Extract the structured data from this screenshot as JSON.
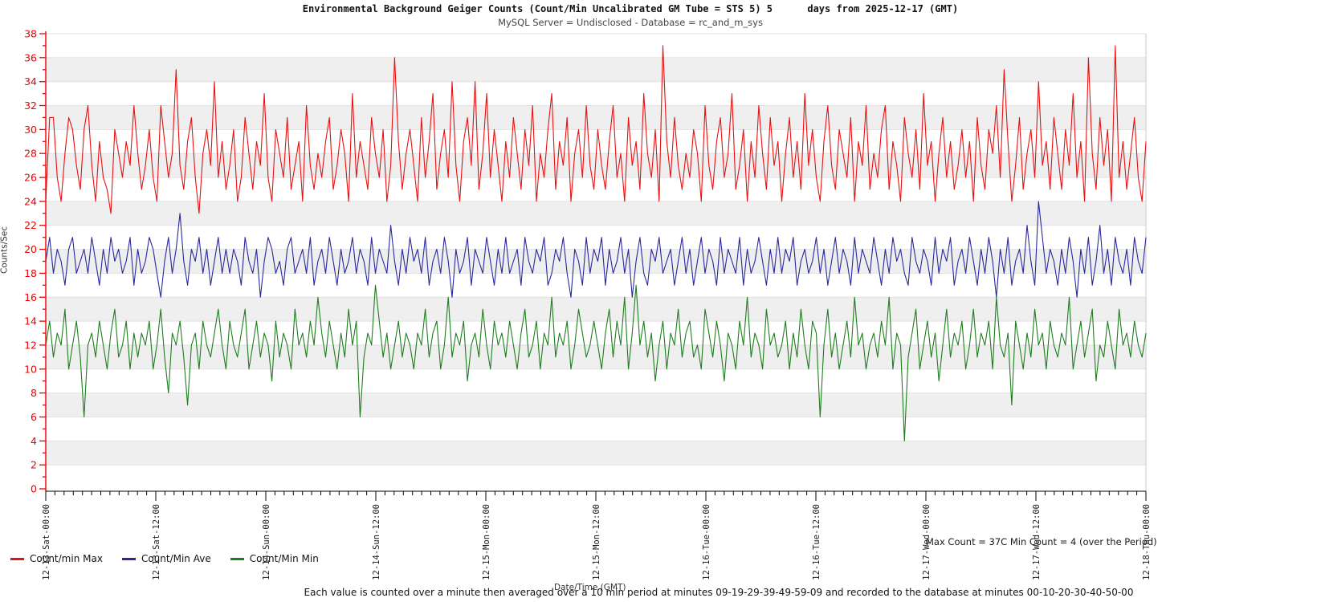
{
  "title": "Environmental Background Geiger Counts (Count/Min Uncalibrated GM Tube = STS 5) 5      days from 2025-12-17 (GMT)",
  "subtitle": "MySQL Server = Undisclosed - Database = rc_and_m_sys",
  "y_axis": {
    "label": "Counts/Sec",
    "min": 0,
    "max": 38,
    "major_step": 2,
    "minor_step": 1,
    "axis_color": "#ee0000"
  },
  "x_axis": {
    "label": "Date/Time (GMT)",
    "minor_ticks_per_label": 12,
    "tick_labels": [
      "12-13-Sat-00:00",
      "12-13-Sat-12:00",
      "12-14-Sun-00:00",
      "12-14-Sun-12:00",
      "12-15-Mon-00:00",
      "12-15-Mon-12:00",
      "12-16-Tue-00:00",
      "12-16-Tue-12:00",
      "12-17-Wed-00:00",
      "12-17-Wed-12:00",
      "12-18-Thu-00:00"
    ]
  },
  "annotation": "Max Count = 37C Min Count = 4 (over the Period)",
  "caption": "Each value is counted over a minute then averaged over a 10 min period at minutes 09-19-29-39-49-59-09 and recorded to the database at minutes 00-10-20-30-40-50-00",
  "plot_style": {
    "band_color": "#efefef",
    "grid_color": "#e2e2e2",
    "border_color": "#c9c9c9",
    "x_axis_color": "#000000"
  },
  "chart_data": {
    "type": "line",
    "title": "Environmental Background Geiger Counts",
    "xlabel": "Date/Time (GMT)",
    "ylabel": "Counts/Sec",
    "ylim": [
      0,
      38
    ],
    "y_major_step": 2,
    "x_start": "12-13-Sat-00:00",
    "x_end": "12-18-Thu-00:00",
    "grid": "horizontal-bands-alternating",
    "legend_position": "bottom-left",
    "max_count_over_period": 37,
    "min_count_over_period": 4,
    "series": [
      {
        "name": "Count/min Max",
        "color": "#e81010",
        "values": [
          24,
          31,
          31,
          26,
          24,
          28,
          31,
          30,
          27,
          25,
          30,
          32,
          27,
          24,
          29,
          26,
          25,
          23,
          30,
          28,
          26,
          29,
          27,
          32,
          28,
          25,
          27,
          30,
          26,
          24,
          32,
          29,
          26,
          28,
          35,
          27,
          25,
          29,
          31,
          26,
          23,
          28,
          30,
          27,
          34,
          26,
          29,
          25,
          27,
          30,
          24,
          26,
          31,
          28,
          25,
          29,
          27,
          33,
          26,
          24,
          30,
          28,
          26,
          31,
          25,
          27,
          29,
          24,
          32,
          27,
          25,
          28,
          26,
          29,
          31,
          25,
          27,
          30,
          28,
          24,
          33,
          26,
          29,
          27,
          25,
          31,
          28,
          26,
          30,
          24,
          27,
          36,
          29,
          25,
          28,
          30,
          27,
          24,
          31,
          26,
          29,
          33,
          25,
          28,
          30,
          26,
          34,
          27,
          24,
          29,
          31,
          27,
          34,
          25,
          28,
          33,
          26,
          30,
          27,
          24,
          29,
          26,
          31,
          28,
          25,
          30,
          27,
          32,
          24,
          28,
          26,
          30,
          33,
          25,
          29,
          27,
          31,
          24,
          28,
          30,
          26,
          32,
          27,
          25,
          30,
          27,
          25,
          29,
          32,
          26,
          28,
          24,
          31,
          27,
          29,
          25,
          33,
          28,
          26,
          30,
          24,
          37,
          29,
          26,
          31,
          27,
          25,
          28,
          26,
          30,
          28,
          24,
          32,
          27,
          25,
          29,
          31,
          26,
          28,
          33,
          25,
          27,
          30,
          24,
          29,
          26,
          32,
          28,
          25,
          31,
          27,
          29,
          24,
          28,
          31,
          26,
          29,
          25,
          33,
          27,
          30,
          26,
          24,
          29,
          32,
          27,
          25,
          30,
          28,
          26,
          31,
          24,
          29,
          27,
          32,
          25,
          28,
          26,
          30,
          32,
          25,
          29,
          27,
          24,
          31,
          28,
          26,
          30,
          25,
          33,
          27,
          29,
          24,
          28,
          31,
          26,
          29,
          25,
          27,
          30,
          26,
          29,
          24,
          31,
          27,
          25,
          30,
          28,
          32,
          26,
          35,
          29,
          24,
          27,
          31,
          25,
          28,
          30,
          26,
          34,
          27,
          29,
          25,
          31,
          28,
          25,
          30,
          27,
          33,
          26,
          29,
          24,
          36,
          28,
          25,
          31,
          27,
          30,
          24,
          37,
          26,
          29,
          25,
          28,
          31,
          26,
          24,
          29
        ]
      },
      {
        "name": "Count/Min Ave",
        "color": "#28289e",
        "values": [
          19,
          21,
          18,
          20,
          19,
          17,
          20,
          21,
          18,
          19,
          20,
          18,
          21,
          19,
          17,
          20,
          18,
          21,
          19,
          20,
          18,
          19,
          21,
          17,
          20,
          18,
          19,
          21,
          20,
          18,
          16,
          19,
          21,
          18,
          20,
          23,
          19,
          17,
          20,
          19,
          21,
          18,
          20,
          17,
          19,
          21,
          18,
          20,
          18,
          20,
          19,
          17,
          21,
          19,
          18,
          20,
          16,
          19,
          21,
          20,
          18,
          19,
          17,
          20,
          21,
          18,
          19,
          20,
          18,
          21,
          17,
          19,
          20,
          18,
          21,
          19,
          17,
          20,
          18,
          19,
          21,
          18,
          20,
          19,
          17,
          21,
          18,
          20,
          19,
          18,
          22,
          19,
          17,
          20,
          18,
          21,
          19,
          20,
          18,
          21,
          17,
          19,
          20,
          18,
          21,
          19,
          16,
          20,
          18,
          19,
          21,
          17,
          20,
          19,
          18,
          21,
          19,
          17,
          20,
          18,
          21,
          18,
          19,
          20,
          17,
          21,
          19,
          18,
          20,
          19,
          21,
          17,
          18,
          20,
          19,
          21,
          18,
          16,
          20,
          19,
          17,
          21,
          18,
          20,
          19,
          21,
          17,
          20,
          18,
          19,
          21,
          18,
          20,
          16,
          19,
          21,
          18,
          17,
          20,
          19,
          21,
          18,
          19,
          20,
          17,
          19,
          21,
          18,
          20,
          17,
          19,
          21,
          18,
          20,
          19,
          17,
          21,
          18,
          20,
          19,
          18,
          21,
          17,
          20,
          18,
          19,
          21,
          19,
          17,
          20,
          18,
          21,
          18,
          20,
          19,
          21,
          17,
          19,
          20,
          18,
          19,
          21,
          18,
          20,
          17,
          19,
          21,
          18,
          20,
          19,
          17,
          21,
          18,
          20,
          19,
          18,
          21,
          19,
          17,
          20,
          18,
          21,
          19,
          20,
          18,
          17,
          21,
          19,
          18,
          20,
          19,
          17,
          21,
          18,
          20,
          19,
          21,
          17,
          19,
          20,
          18,
          21,
          19,
          17,
          20,
          18,
          21,
          19,
          16,
          20,
          18,
          21,
          17,
          19,
          20,
          18,
          22,
          19,
          17,
          24,
          21,
          18,
          20,
          19,
          17,
          20,
          18,
          21,
          19,
          16,
          20,
          18,
          21,
          17,
          19,
          22,
          18,
          20,
          17,
          21,
          19,
          18,
          20,
          17,
          21,
          19,
          18,
          21
        ]
      },
      {
        "name": "Count/Min Min",
        "color": "#1e7d1e",
        "values": [
          12,
          14,
          11,
          13,
          12,
          15,
          10,
          12,
          14,
          11,
          6,
          12,
          13,
          11,
          14,
          12,
          10,
          13,
          15,
          11,
          12,
          14,
          10,
          13,
          11,
          13,
          12,
          14,
          10,
          12,
          15,
          11,
          8,
          13,
          12,
          14,
          11,
          7,
          12,
          13,
          10,
          14,
          12,
          11,
          13,
          15,
          12,
          10,
          14,
          12,
          11,
          13,
          15,
          10,
          12,
          14,
          11,
          13,
          12,
          9,
          14,
          11,
          13,
          12,
          10,
          15,
          12,
          13,
          11,
          14,
          12,
          16,
          13,
          11,
          14,
          12,
          10,
          13,
          11,
          15,
          12,
          14,
          6,
          11,
          13,
          12,
          17,
          14,
          11,
          13,
          10,
          12,
          14,
          11,
          13,
          12,
          10,
          13,
          12,
          15,
          11,
          13,
          14,
          10,
          12,
          16,
          11,
          13,
          12,
          14,
          9,
          12,
          13,
          11,
          15,
          12,
          10,
          14,
          12,
          13,
          11,
          14,
          12,
          10,
          13,
          15,
          11,
          12,
          14,
          10,
          13,
          12,
          16,
          11,
          13,
          12,
          14,
          10,
          12,
          15,
          13,
          11,
          12,
          14,
          12,
          10,
          13,
          15,
          11,
          14,
          12,
          16,
          10,
          13,
          17,
          12,
          14,
          11,
          13,
          9,
          12,
          14,
          10,
          13,
          12,
          15,
          11,
          13,
          14,
          11,
          12,
          10,
          15,
          13,
          11,
          14,
          12,
          9,
          13,
          12,
          10,
          14,
          12,
          16,
          11,
          13,
          12,
          10,
          15,
          12,
          13,
          11,
          12,
          14,
          10,
          13,
          11,
          15,
          12,
          10,
          14,
          13,
          6,
          12,
          15,
          11,
          13,
          10,
          12,
          14,
          11,
          16,
          12,
          13,
          10,
          12,
          13,
          11,
          14,
          12,
          16,
          10,
          13,
          12,
          4,
          11,
          13,
          15,
          10,
          12,
          14,
          11,
          13,
          9,
          12,
          15,
          11,
          13,
          12,
          14,
          10,
          12,
          15,
          11,
          13,
          12,
          14,
          10,
          16,
          12,
          11,
          13,
          7,
          14,
          12,
          10,
          13,
          11,
          15,
          12,
          13,
          10,
          14,
          12,
          11,
          13,
          12,
          16,
          10,
          12,
          14,
          11,
          13,
          15,
          9,
          12,
          11,
          14,
          12,
          10,
          15,
          12,
          13,
          11,
          14,
          12,
          11,
          13
        ]
      }
    ]
  }
}
